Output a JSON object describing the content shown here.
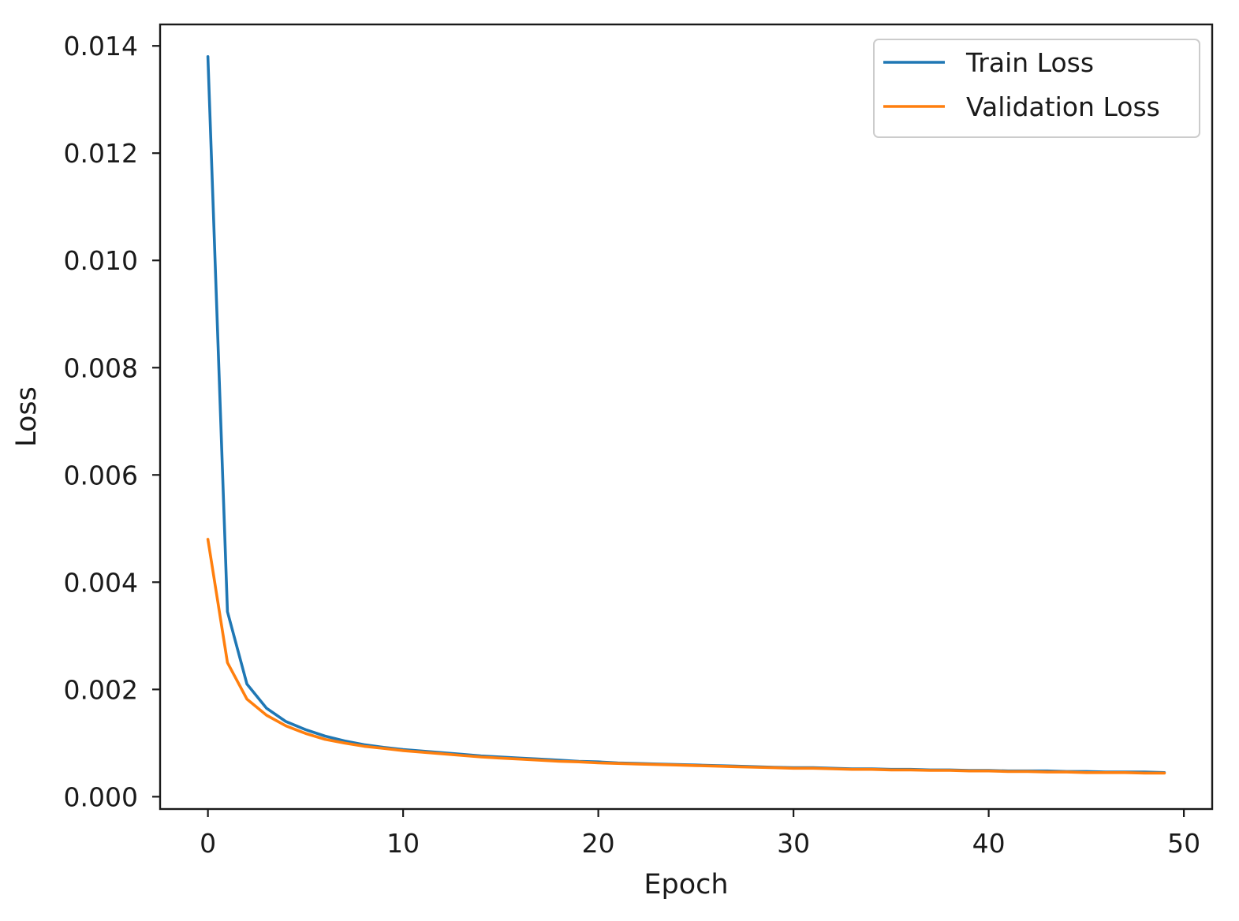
{
  "chart_data": {
    "type": "line",
    "title": "",
    "xlabel": "Epoch",
    "ylabel": "Loss",
    "xlim": [
      -2.45,
      51.45
    ],
    "ylim": [
      -0.00023,
      0.0144
    ],
    "xticks": [
      0,
      10,
      20,
      30,
      40,
      50
    ],
    "xtick_labels": [
      "0",
      "10",
      "20",
      "30",
      "40",
      "50"
    ],
    "yticks": [
      0.0,
      0.002,
      0.004,
      0.006,
      0.008,
      0.01,
      0.012,
      0.014
    ],
    "ytick_labels": [
      "0.000",
      "0.002",
      "0.004",
      "0.006",
      "0.008",
      "0.010",
      "0.012",
      "0.014"
    ],
    "grid": false,
    "legend_position": "top-right",
    "x": [
      0,
      1,
      2,
      3,
      4,
      5,
      6,
      7,
      8,
      9,
      10,
      11,
      12,
      13,
      14,
      15,
      16,
      17,
      18,
      19,
      20,
      21,
      22,
      23,
      24,
      25,
      26,
      27,
      28,
      29,
      30,
      31,
      32,
      33,
      34,
      35,
      36,
      37,
      38,
      39,
      40,
      41,
      42,
      43,
      44,
      45,
      46,
      47,
      48,
      49
    ],
    "series": [
      {
        "name": "Train Loss",
        "color": "#1f77b4",
        "values": [
          0.0138,
          0.00345,
          0.0021,
          0.00165,
          0.0014,
          0.00125,
          0.00113,
          0.00104,
          0.00097,
          0.00092,
          0.00088,
          0.00085,
          0.00082,
          0.00079,
          0.00076,
          0.00074,
          0.00072,
          0.0007,
          0.00068,
          0.00066,
          0.00065,
          0.00063,
          0.00062,
          0.00061,
          0.0006,
          0.00059,
          0.00058,
          0.00057,
          0.00056,
          0.00055,
          0.00054,
          0.00054,
          0.00053,
          0.00052,
          0.00052,
          0.00051,
          0.00051,
          0.0005,
          0.0005,
          0.00049,
          0.00049,
          0.00048,
          0.00048,
          0.00048,
          0.00047,
          0.00047,
          0.00046,
          0.00046,
          0.00046,
          0.00045
        ]
      },
      {
        "name": "Validation Loss",
        "color": "#ff7f0e",
        "values": [
          0.0048,
          0.0025,
          0.00182,
          0.00152,
          0.00132,
          0.00118,
          0.00107,
          0.001,
          0.00094,
          0.0009,
          0.00086,
          0.00083,
          0.0008,
          0.00077,
          0.00074,
          0.00072,
          0.0007,
          0.00068,
          0.00066,
          0.00065,
          0.00063,
          0.00062,
          0.00061,
          0.0006,
          0.00059,
          0.00058,
          0.00057,
          0.00056,
          0.00055,
          0.00054,
          0.00053,
          0.00053,
          0.00052,
          0.00051,
          0.00051,
          0.0005,
          0.0005,
          0.00049,
          0.00049,
          0.00048,
          0.00048,
          0.00047,
          0.00047,
          0.00046,
          0.00046,
          0.00045,
          0.00045,
          0.00045,
          0.00044,
          0.00044
        ]
      }
    ]
  }
}
